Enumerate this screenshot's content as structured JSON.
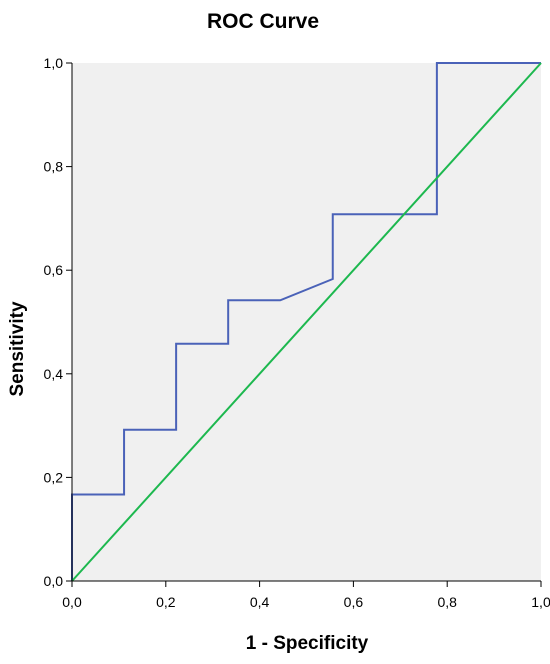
{
  "chart_data": {
    "type": "line",
    "title": "ROC Curve",
    "xlabel": "1 - Specificity",
    "ylabel": "Sensitivity",
    "xlim": [
      0,
      1
    ],
    "ylim": [
      0,
      1
    ],
    "x_ticks": [
      0,
      0.2,
      0.4,
      0.6,
      0.8,
      1
    ],
    "x_tick_labels": [
      "0,0",
      "0,2",
      "0,4",
      "0,6",
      "0,8",
      "1,0"
    ],
    "y_ticks": [
      0,
      0.2,
      0.4,
      0.6,
      0.8,
      1
    ],
    "y_tick_labels": [
      "0,0",
      "0,2",
      "0,4",
      "0,6",
      "0,8",
      "1,0"
    ],
    "grid": false,
    "plot_background": "#f0f0f0",
    "series": [
      {
        "color": "#4a62b8",
        "points": [
          [
            0,
            0
          ],
          [
            0,
            0.167
          ],
          [
            0.111,
            0.167
          ],
          [
            0.111,
            0.292
          ],
          [
            0.222,
            0.292
          ],
          [
            0.222,
            0.458
          ],
          [
            0.333,
            0.458
          ],
          [
            0.333,
            0.542
          ],
          [
            0.444,
            0.542
          ],
          [
            0.556,
            0.583
          ],
          [
            0.556,
            0.708
          ],
          [
            0.778,
            0.708
          ],
          [
            0.778,
            1.0
          ],
          [
            1.0,
            1.0
          ]
        ]
      },
      {
        "color": "#1db84f",
        "points": [
          [
            0,
            0
          ],
          [
            1,
            1
          ]
        ]
      }
    ]
  }
}
